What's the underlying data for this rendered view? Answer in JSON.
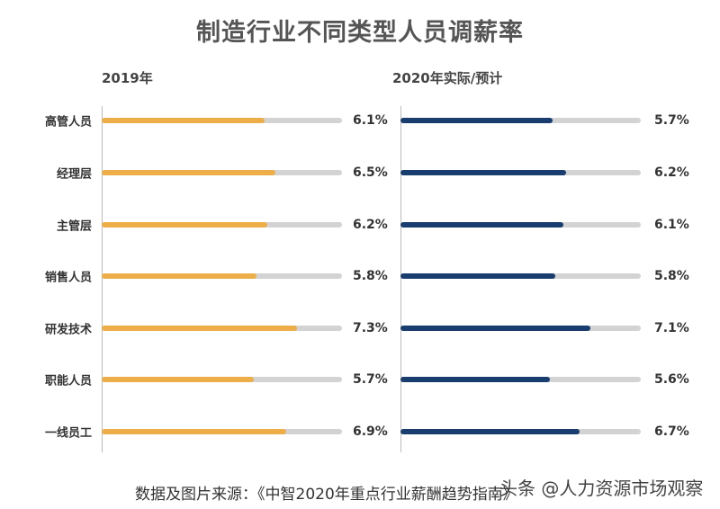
{
  "chart_data": {
    "type": "bar",
    "orientation": "horizontal",
    "title": "制造行业不同类型人员调薪率",
    "categories": [
      "高管人员",
      "经理层",
      "主管层",
      "销售人员",
      "研发技术",
      "职能人员",
      "一线员工"
    ],
    "xlim": [
      0,
      9
    ],
    "grid": false,
    "panels": [
      {
        "title": "2019年",
        "color": "#EDAE49",
        "values": [
          6.1,
          6.5,
          6.2,
          5.8,
          7.3,
          5.7,
          6.9
        ],
        "labels": [
          "6.1%",
          "6.5%",
          "6.2%",
          "5.8%",
          "7.3%",
          "5.7%",
          "6.9%"
        ]
      },
      {
        "title": "2020年实际/预计",
        "color": "#183D6E",
        "values": [
          5.7,
          6.2,
          6.1,
          5.8,
          7.1,
          5.6,
          6.7
        ],
        "labels": [
          "5.7%",
          "6.2%",
          "6.1%",
          "5.8%",
          "7.1%",
          "5.6%",
          "6.7%"
        ]
      }
    ],
    "track_color": "#D3D3D3"
  },
  "source": "数据及图片来源：《中智2020年重点行业薪酬趋势指南》",
  "watermark": "头条 @人力资源市场观察"
}
